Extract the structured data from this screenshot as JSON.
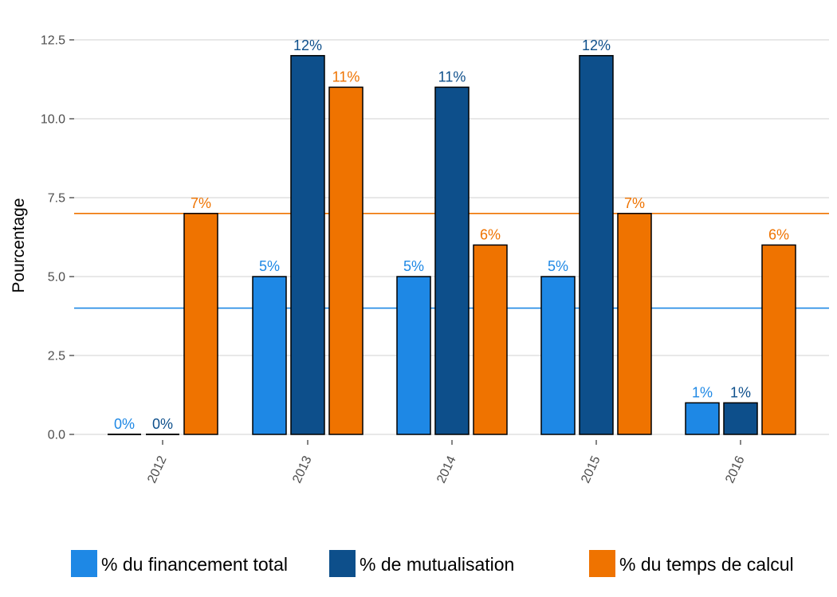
{
  "chart_data": {
    "type": "bar",
    "title": "",
    "xlabel": "",
    "ylabel": "Pourcentage",
    "ylim": [
      -0.6,
      12.9
    ],
    "yticks": [
      0.0,
      2.5,
      5.0,
      7.5,
      10.0,
      12.5
    ],
    "ytick_labels": [
      "0.0",
      "2.5",
      "5.0",
      "7.5",
      "10.0",
      "12.5"
    ],
    "categories": [
      "2012",
      "2013",
      "2014",
      "2015",
      "2016"
    ],
    "grid": true,
    "legend_position": "bottom",
    "series": [
      {
        "name": "% du financement total",
        "color": "#1e88e5",
        "values": [
          0,
          5,
          5,
          5,
          1
        ],
        "labels": [
          "0%",
          "5%",
          "5%",
          "5%",
          "1%"
        ]
      },
      {
        "name": "% de mutualisation",
        "color": "#0d4f8b",
        "values": [
          0,
          12,
          11,
          12,
          1
        ],
        "labels": [
          "0%",
          "12%",
          "11%",
          "12%",
          "1%"
        ]
      },
      {
        "name": "% du temps de calcul",
        "color": "#ef7300",
        "values": [
          7,
          11,
          6,
          7,
          6
        ],
        "labels": [
          "7%",
          "11%",
          "6%",
          "7%",
          "6%"
        ]
      }
    ],
    "reference_lines": [
      {
        "value": 4,
        "color": "#1e88e5"
      },
      {
        "value": 7,
        "color": "#ef7300"
      }
    ]
  }
}
